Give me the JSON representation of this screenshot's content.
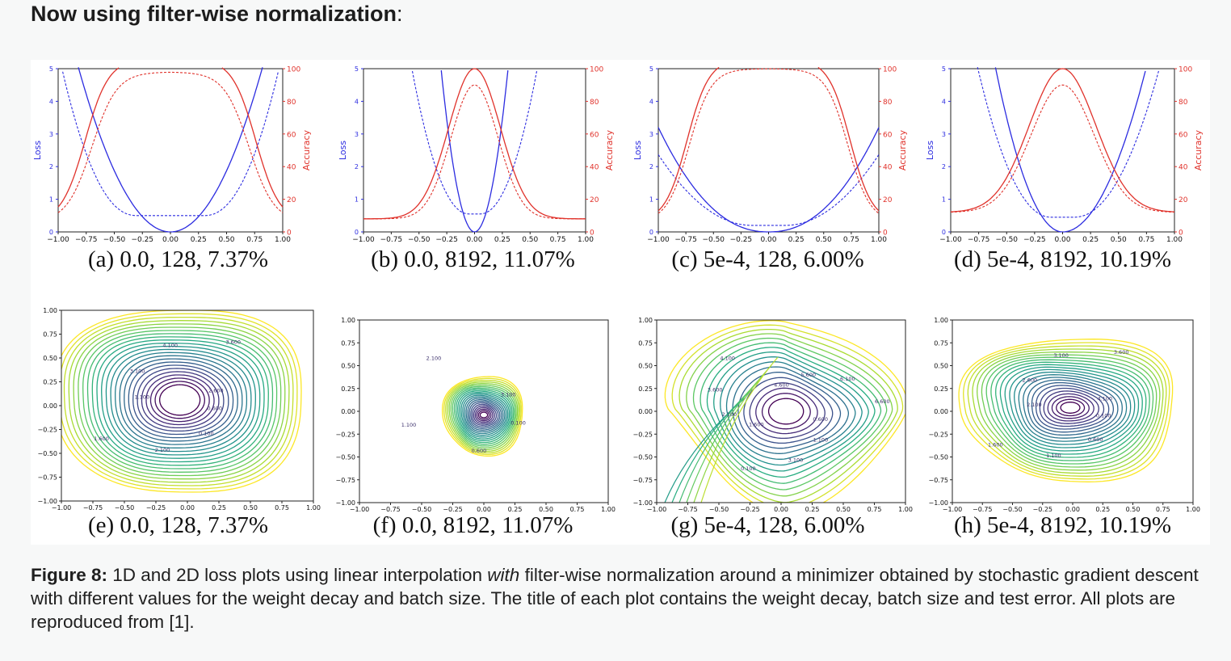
{
  "heading": {
    "title": "Now using filter-wise normalization",
    "colon": ":"
  },
  "colors": {
    "loss": "#2c2ce0",
    "accuracy": "#e0322b",
    "background": "#f7f8f8"
  },
  "axes_1d": {
    "x_ticks": [
      "−1.00",
      "−0.75",
      "−0.50",
      "−0.25",
      "0.00",
      "0.25",
      "0.50",
      "0.75",
      "1.00"
    ],
    "loss_ticks": [
      "0",
      "1",
      "2",
      "3",
      "4",
      "5"
    ],
    "acc_ticks": [
      "0",
      "20",
      "40",
      "60",
      "80",
      "100"
    ],
    "loss_label": "Loss",
    "acc_label": "Accuracy"
  },
  "axes_2d": {
    "ticks": [
      "−1.00",
      "−0.75",
      "−0.50",
      "−0.25",
      "0.00",
      "0.25",
      "0.50",
      "0.75",
      "1.00"
    ],
    "y_ticks": [
      "1.00",
      "0.75",
      "0.50",
      "0.25",
      "0.00",
      "−0.25",
      "−0.50",
      "−0.75",
      "−1.00"
    ]
  },
  "subcaptions": [
    "(a) 0.0, 128, 7.37%",
    "(b) 0.0, 8192, 11.07%",
    "(c) 5e-4, 128, 6.00%",
    "(d) 5e-4, 8192, 10.19%",
    "(e) 0.0, 128, 7.37%",
    "(f) 0.0, 8192, 11.07%",
    "(g) 5e-4, 128, 6.00%",
    "(h) 5e-4, 8192, 10.19%"
  ],
  "contour_labels": {
    "e": [
      "0.600",
      "0.100",
      "2.100",
      "1.600",
      "1.100",
      "3.100",
      "4.100",
      "3.600",
      "2.600"
    ],
    "f": [
      "0.100",
      "0.600",
      "1.100",
      "2.100",
      "3.100"
    ],
    "g": [
      "0.600",
      "1.100",
      "3.100",
      "0.100",
      "1.600",
      "2.100",
      "3.600",
      "4.100",
      "4.600",
      "5.600",
      "6.100",
      "6.600"
    ],
    "h": [
      "0.100",
      "0.600",
      "1.100",
      "1.600",
      "2.100",
      "2.600",
      "3.100",
      "3.600",
      "4.100"
    ]
  },
  "chart_data": [
    {
      "type": "line",
      "panel": "a",
      "series": [
        {
          "name": "Loss",
          "style": "solid",
          "shape": "parabola",
          "center": 0.0,
          "min": 0.0,
          "crosses_5_at": [
            -0.86,
            0.88
          ]
        },
        {
          "name": "Loss",
          "style": "dashed",
          "shape": "bowl",
          "center": 0.0,
          "min": 0.5
        },
        {
          "name": "Accuracy",
          "style": "solid",
          "plateau": 100,
          "plateau_range": [
            -0.5,
            0.5
          ],
          "at_minus1": 12
        },
        {
          "name": "Accuracy",
          "style": "dashed",
          "plateau": 92,
          "plateau_range": [
            -0.4,
            0.4
          ],
          "at_minus1": 12
        }
      ],
      "xlim": [
        -1,
        1
      ],
      "loss_ylim": [
        0,
        5
      ],
      "acc_ylim": [
        0,
        100
      ]
    },
    {
      "type": "line",
      "panel": "b",
      "series": [
        {
          "name": "Loss",
          "style": "solid",
          "shape": "parabola",
          "center": 0.0,
          "min": 0.0,
          "crosses_5_at": [
            -0.3,
            0.3
          ]
        },
        {
          "name": "Loss",
          "style": "dashed",
          "shape": "bowl",
          "center": 0.0,
          "min": 0.55
        },
        {
          "name": "Accuracy",
          "style": "solid",
          "peak": 100,
          "at_minus1": 10
        },
        {
          "name": "Accuracy",
          "style": "dashed",
          "peak": 90,
          "at_minus1": 10
        }
      ],
      "xlim": [
        -1,
        1
      ],
      "loss_ylim": [
        0,
        5
      ],
      "acc_ylim": [
        0,
        100
      ]
    },
    {
      "type": "line",
      "panel": "c",
      "series": [
        {
          "name": "Loss",
          "style": "solid",
          "shape": "bowl",
          "center": 0.0,
          "min": 0.0,
          "at_minus1": 3.2,
          "at_plus1": 3.0
        },
        {
          "name": "Loss",
          "style": "dashed",
          "shape": "bowl",
          "center": 0.0,
          "min": 0.2
        },
        {
          "name": "Accuracy",
          "style": "solid",
          "plateau": 100,
          "at_minus1": 18,
          "at_plus1": 20
        },
        {
          "name": "Accuracy",
          "style": "dashed",
          "plateau": 94,
          "at_minus1": 18,
          "at_plus1": 20
        }
      ],
      "xlim": [
        -1,
        1
      ],
      "loss_ylim": [
        0,
        5
      ],
      "acc_ylim": [
        0,
        100
      ]
    },
    {
      "type": "line",
      "panel": "d",
      "series": [
        {
          "name": "Loss",
          "style": "solid",
          "shape": "parabola",
          "center": 0.0,
          "min": 0.0,
          "crosses_5_at": [
            -0.6,
            0.75
          ]
        },
        {
          "name": "Loss",
          "style": "dashed",
          "shape": "bowl",
          "center": 0.0,
          "min": 0.45
        },
        {
          "name": "Accuracy",
          "style": "solid",
          "peak": 100,
          "at_minus1": 12
        },
        {
          "name": "Accuracy",
          "style": "dashed",
          "peak": 90,
          "at_minus1": 12
        }
      ],
      "xlim": [
        -1,
        1
      ],
      "loss_ylim": [
        0,
        5
      ],
      "acc_ylim": [
        0,
        100
      ]
    },
    {
      "type": "heatmap",
      "panel": "e",
      "style": "contour",
      "xlim": [
        -1,
        1
      ],
      "ylim": [
        -1,
        1
      ],
      "minimum_at": [
        -0.05,
        0.05
      ],
      "level_step": 0.5
    },
    {
      "type": "heatmap",
      "panel": "f",
      "style": "contour",
      "xlim": [
        -1,
        1
      ],
      "ylim": [
        -1,
        1
      ],
      "minimum_at": [
        -0.02,
        0.0
      ],
      "level_step": 0.5
    },
    {
      "type": "heatmap",
      "panel": "g",
      "style": "contour",
      "xlim": [
        -1,
        1
      ],
      "ylim": [
        -1,
        1
      ],
      "minimum_at": [
        0.02,
        0.0
      ],
      "level_step": 0.5
    },
    {
      "type": "heatmap",
      "panel": "h",
      "style": "contour",
      "xlim": [
        -1,
        1
      ],
      "ylim": [
        -1,
        1
      ],
      "minimum_at": [
        0.05,
        -0.02
      ],
      "level_step": 0.5
    }
  ],
  "caption": {
    "label": "Figure 8:",
    "text_before": " 1D and 2D loss plots using linear interpolation ",
    "emphasis": "with",
    "text_after": " filter-wise normalization around a minimizer obtained by stochastic gradient descent with different values for the weight decay and batch size. The title of each plot contains the weight decay, batch size and test error. All plots are reproduced from [1]."
  }
}
